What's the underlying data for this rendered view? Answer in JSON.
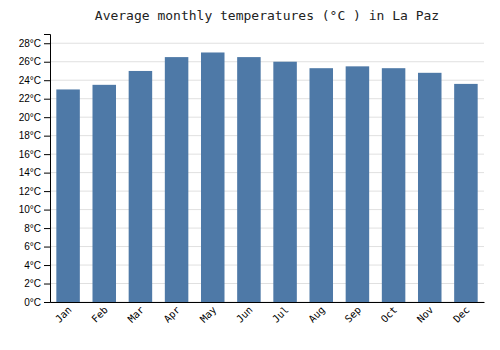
{
  "chart_data": {
    "type": "bar",
    "title": "Average monthly temperatures (°C ) in La Paz",
    "categories": [
      "Jan",
      "Feb",
      "Mar",
      "Apr",
      "May",
      "Jun",
      "Jul",
      "Aug",
      "Sep",
      "Oct",
      "Nov",
      "Dec"
    ],
    "values": [
      23.0,
      23.5,
      25.0,
      26.5,
      27.0,
      26.5,
      26.0,
      25.3,
      25.5,
      25.3,
      24.8,
      23.6
    ],
    "ylim": [
      0,
      29
    ],
    "yticks": [
      {
        "value": 0,
        "label": "0°C"
      },
      {
        "value": 2,
        "label": "2°C"
      },
      {
        "value": 4,
        "label": "4°C"
      },
      {
        "value": 6,
        "label": "6°C"
      },
      {
        "value": 8,
        "label": "8°C"
      },
      {
        "value": 10,
        "label": "10°C"
      },
      {
        "value": 12,
        "label": "12°C"
      },
      {
        "value": 14,
        "label": "14°C"
      },
      {
        "value": 16,
        "label": "16°C"
      },
      {
        "value": 18,
        "label": "18°C"
      },
      {
        "value": 20,
        "label": "20°C"
      },
      {
        "value": 22,
        "label": "22°C"
      },
      {
        "value": 24,
        "label": "24°C"
      },
      {
        "value": 26,
        "label": "26°C"
      },
      {
        "value": 28,
        "label": "28°C"
      }
    ],
    "grid": true
  }
}
